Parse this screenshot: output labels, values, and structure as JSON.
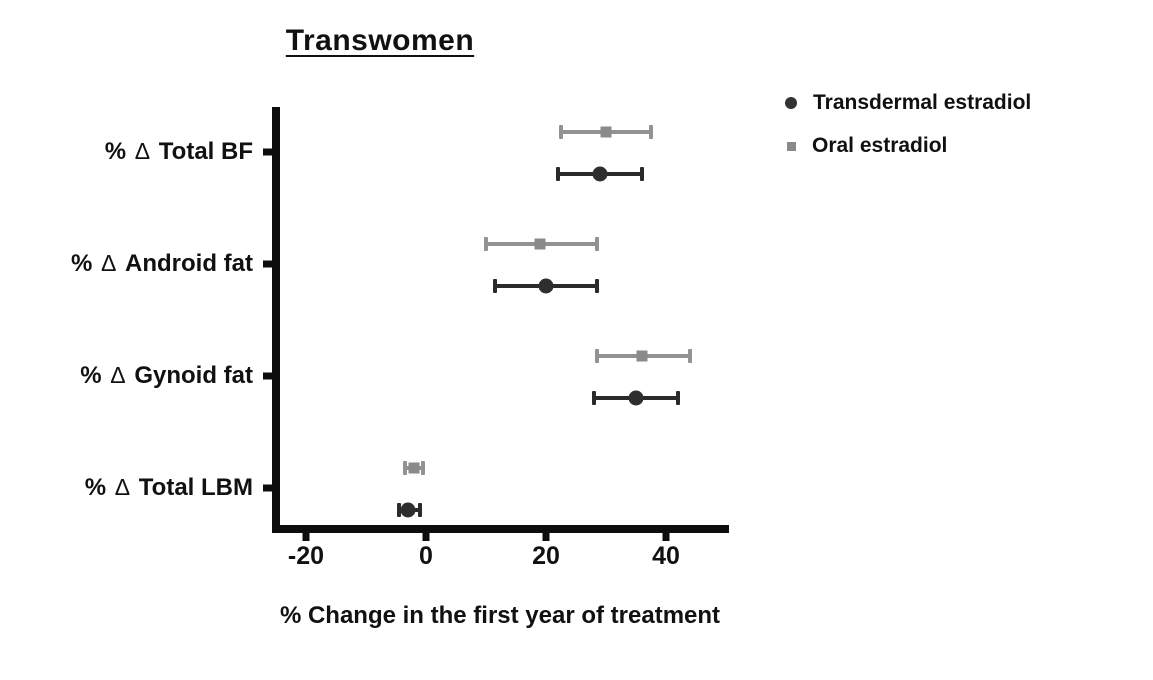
{
  "title": "Transwomen",
  "x_axis_title": "% Change in the first year of treatment",
  "legend": {
    "position": "right-top",
    "items": [
      {
        "label": "Transdermal estradiol",
        "marker": "circle",
        "color": "#333333"
      },
      {
        "label": "Oral estradiol",
        "marker": "square",
        "color": "#8a8a8a"
      }
    ]
  },
  "chart_data": {
    "type": "scatter",
    "subtype": "horizontal-dot-plot-with-error-bars",
    "title": "Transwomen",
    "xlabel": "% Change in the first year of treatment",
    "ylabel": "",
    "xlim": [
      -25,
      50.5
    ],
    "xticks": [
      -20,
      0,
      20,
      40
    ],
    "grid": false,
    "legend_position": "upper right, outside plot",
    "categories": [
      "% Δ Total BF",
      "% Δ Android fat",
      "% Δ Gynoid fat",
      "% Δ Total LBM"
    ],
    "series": [
      {
        "name": "Oral estradiol",
        "marker": "square",
        "color": "#8a8a8a",
        "line_color": "#929292",
        "values": [
          {
            "category": "% Δ Total BF",
            "center": 30,
            "low": 22.5,
            "high": 37.5
          },
          {
            "category": "% Δ Android fat",
            "center": 19,
            "low": 10,
            "high": 28.5
          },
          {
            "category": "% Δ Gynoid fat",
            "center": 36,
            "low": 28.5,
            "high": 44
          },
          {
            "category": "% Δ Total LBM",
            "center": -2,
            "low": -3.5,
            "high": -0.5
          }
        ]
      },
      {
        "name": "Transdermal estradiol",
        "marker": "circle",
        "color": "#2e2e2e",
        "line_color": "#2b2b2b",
        "values": [
          {
            "category": "% Δ Total BF",
            "center": 29,
            "low": 22,
            "high": 36
          },
          {
            "category": "% Δ Android fat",
            "center": 20,
            "low": 11.5,
            "high": 28.5
          },
          {
            "category": "% Δ Gynoid fat",
            "center": 35,
            "low": 28,
            "high": 42
          },
          {
            "category": "% Δ Total LBM",
            "center": -3,
            "low": -4.5,
            "high": -1
          }
        ]
      }
    ]
  }
}
